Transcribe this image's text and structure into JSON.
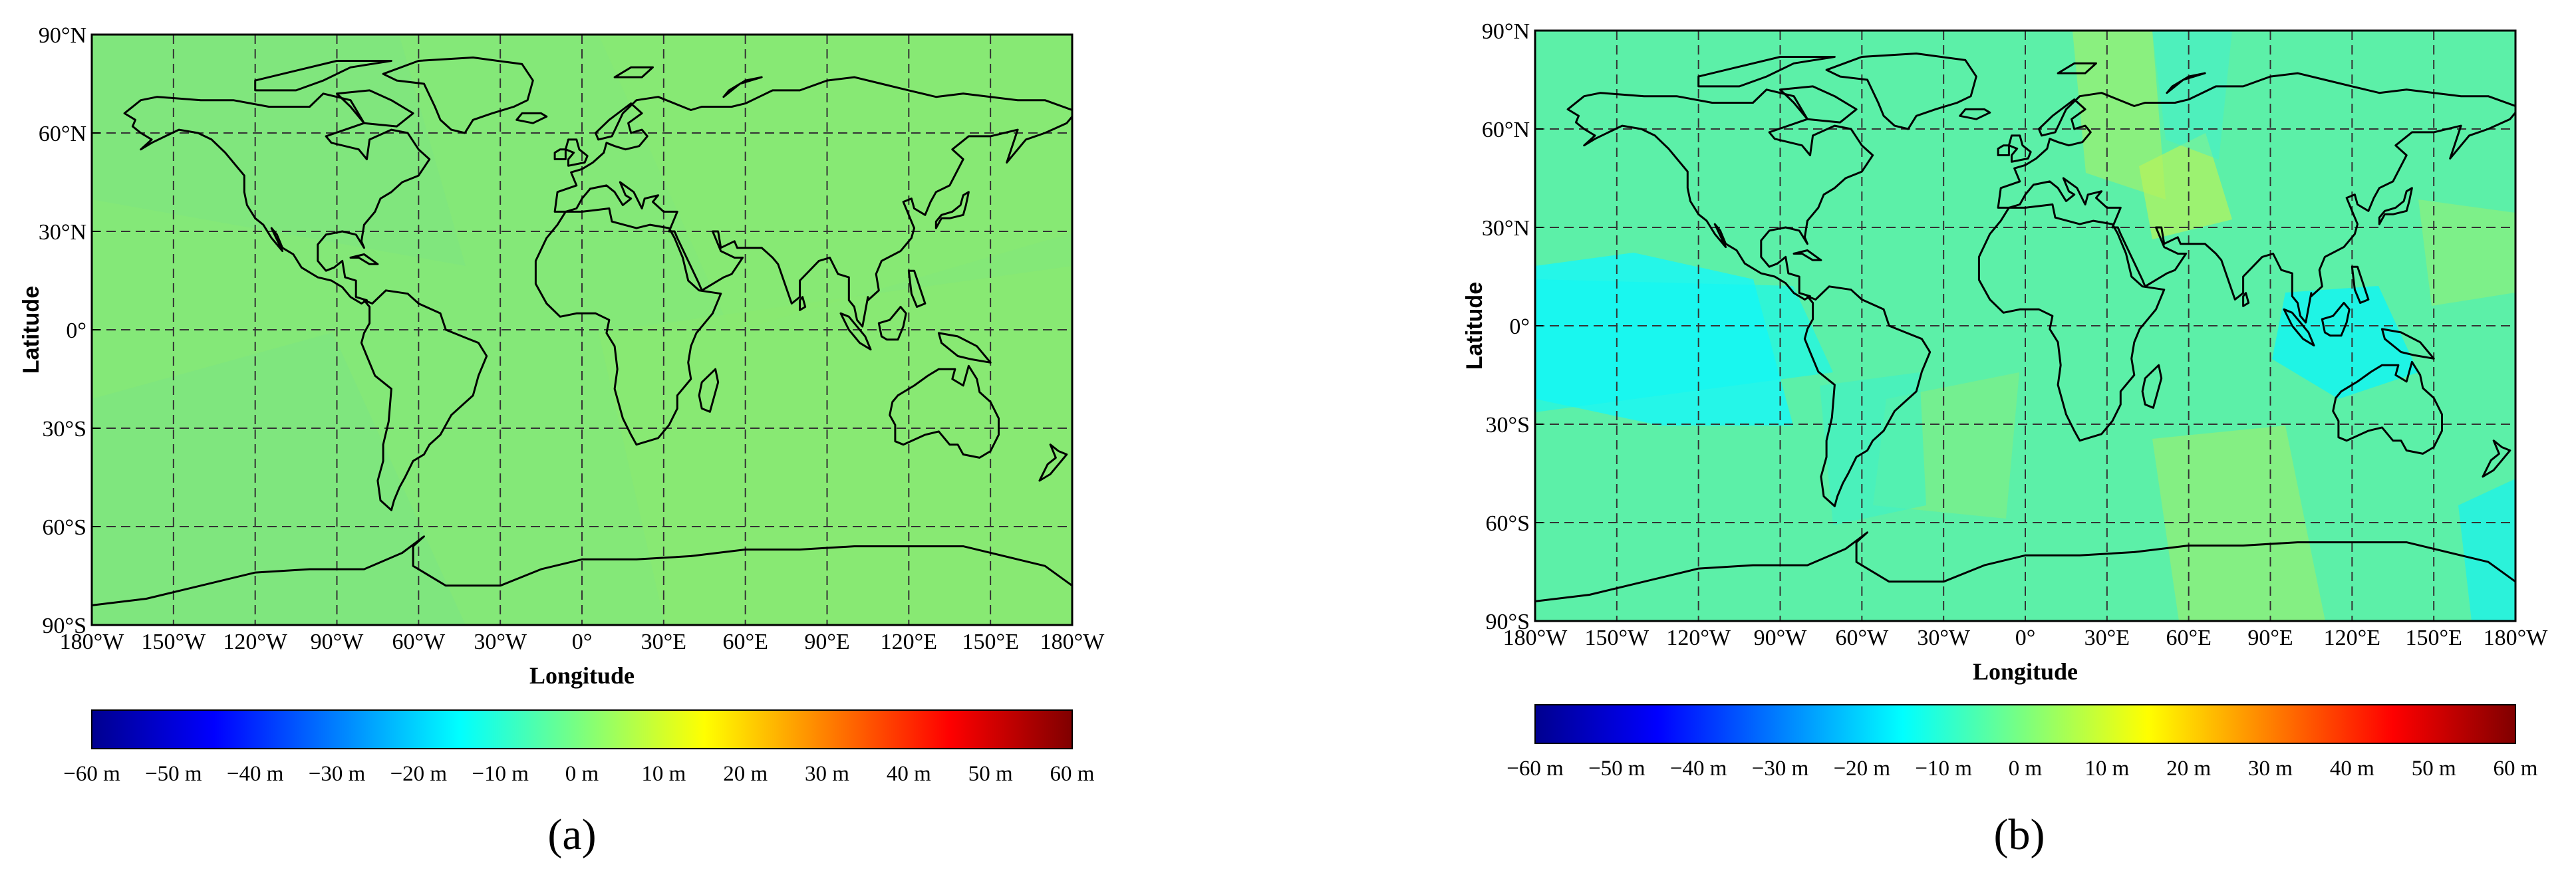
{
  "panels": [
    {
      "id": "a",
      "caption": "(a)",
      "ylabel": "Latitude",
      "xlabel": "Longitude",
      "lat_ticks": [
        "90°N",
        "60°N",
        "30°N",
        "0°",
        "30°S",
        "60°S",
        "90°S"
      ],
      "lon_ticks": [
        "180°W",
        "150°W",
        "120°W",
        "90°W",
        "60°W",
        "30°W",
        "0°",
        "30°E",
        "60°E",
        "90°E",
        "120°E",
        "150°E",
        "180°W"
      ],
      "colorbar_ticks": [
        "−60 m",
        "−50 m",
        "−40 m",
        "−30 m",
        "−20 m",
        "−10 m",
        "0 m",
        "10 m",
        "20 m",
        "30 m",
        "40 m",
        "50 m",
        "60 m"
      ]
    },
    {
      "id": "b",
      "caption": "(b)",
      "ylabel": "Latitude",
      "xlabel": "Longitude",
      "lat_ticks": [
        "90°N",
        "60°N",
        "30°N",
        "0°",
        "30°S",
        "60°S",
        "90°S"
      ],
      "lon_ticks": [
        "180°W",
        "150°W",
        "120°W",
        "90°W",
        "60°W",
        "30°W",
        "0°",
        "30°E",
        "60°E",
        "90°E",
        "120°E",
        "150°E",
        "180°W"
      ],
      "colorbar_ticks": [
        "−60 m",
        "−50 m",
        "−40 m",
        "−30 m",
        "−20 m",
        "−10 m",
        "0 m",
        "10 m",
        "20 m",
        "30 m",
        "40 m",
        "50 m",
        "60 m"
      ]
    }
  ],
  "colorbar_range_m": [
    -60,
    60
  ],
  "colors": {
    "panel_a_field": "#7ee77a",
    "panel_b_field": "#5cf0a8",
    "panel_b_cyan_regions": "#27f3e6",
    "panel_b_yellowgreen_regions": "#b8f25a",
    "coastline": "#000000",
    "gridline": "#333333"
  }
}
